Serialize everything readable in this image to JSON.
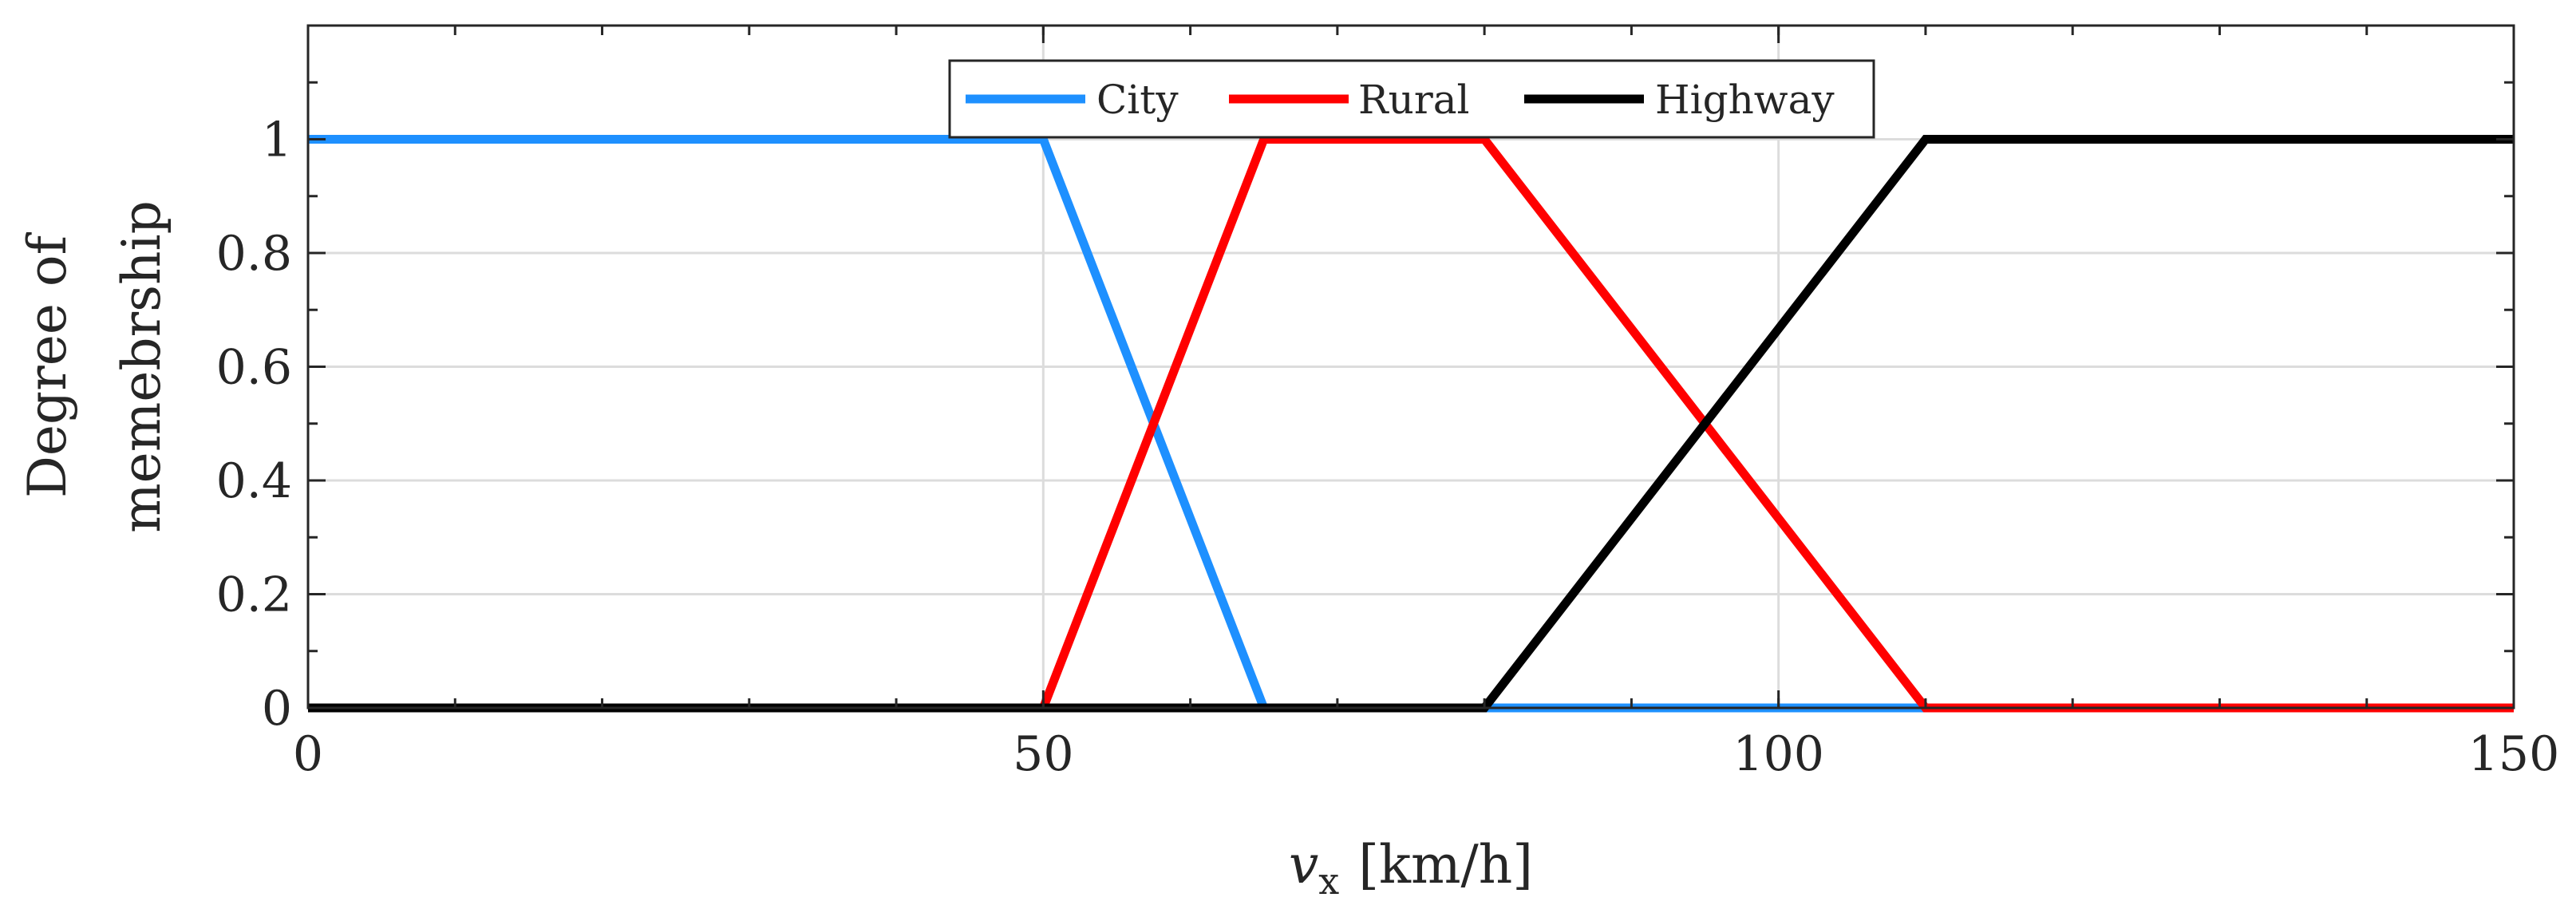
{
  "chart_data": {
    "type": "line",
    "xlabel_var": "v",
    "xlabel_sub": "x",
    "xlabel_unit": "[km/h]",
    "ylabel_line1": "Degree of",
    "ylabel_line2": "memebrship",
    "xlim": [
      0,
      150
    ],
    "ylim": [
      0,
      1.2
    ],
    "xticks": [
      0,
      50,
      100,
      150
    ],
    "xtick_labels": [
      "0",
      "50",
      "100",
      "150"
    ],
    "yticks": [
      0,
      0.2,
      0.4,
      0.6,
      0.8,
      1
    ],
    "ytick_labels": [
      "0",
      "0.2",
      "0.4",
      "0.6",
      "0.8",
      "1"
    ],
    "grid": true,
    "legend_position": "top-center",
    "series": [
      {
        "name": "City",
        "color": "#1e90ff",
        "x": [
          0,
          50,
          65,
          150
        ],
        "y": [
          1,
          1,
          0,
          0
        ]
      },
      {
        "name": "Rural",
        "color": "#ff0000",
        "x": [
          0,
          50,
          65,
          80,
          110,
          150
        ],
        "y": [
          0,
          0,
          1,
          1,
          0,
          0
        ]
      },
      {
        "name": "Highway",
        "color": "#000000",
        "x": [
          0,
          80,
          110,
          150
        ],
        "y": [
          0,
          0,
          1,
          1
        ]
      }
    ]
  }
}
